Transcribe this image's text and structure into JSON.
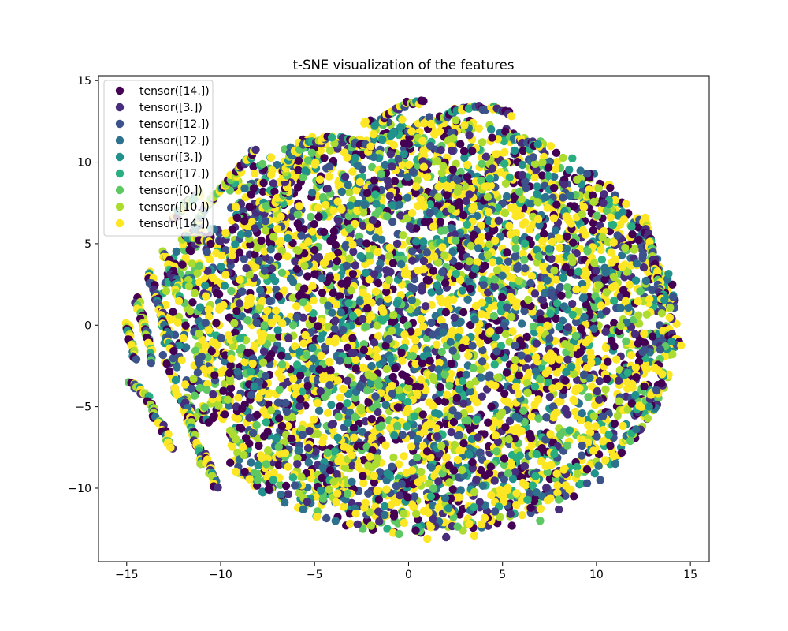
{
  "chart_data": {
    "type": "scatter",
    "title": "t-SNE visualization of the features",
    "xlabel": "",
    "ylabel": "",
    "xlim": [
      -16.5,
      16.0
    ],
    "ylim": [
      -14.5,
      15.3
    ],
    "x_ticks": [
      -15,
      -10,
      -5,
      0,
      5,
      10,
      15
    ],
    "y_ticks": [
      -10,
      -5,
      0,
      5,
      10,
      15
    ],
    "x_tick_labels": [
      "−15",
      "−10",
      "−5",
      "0",
      "5",
      "10",
      "15"
    ],
    "y_tick_labels": [
      "−10",
      "−5",
      "0",
      "5",
      "10",
      "15"
    ],
    "grid": false,
    "legend_position": "upper-left",
    "series": [
      {
        "name": "tensor([14.])",
        "color": "#440154"
      },
      {
        "name": "tensor([3.])",
        "color": "#472d7b"
      },
      {
        "name": "tensor([12.])",
        "color": "#3b528b"
      },
      {
        "name": "tensor([12.])",
        "color": "#2c728e"
      },
      {
        "name": "tensor([3.])",
        "color": "#21918c"
      },
      {
        "name": "tensor([17.])",
        "color": "#28ae80"
      },
      {
        "name": "tensor([0.])",
        "color": "#5ec962"
      },
      {
        "name": "tensor([10.])",
        "color": "#addc30"
      },
      {
        "name": "tensor([14.])",
        "color": "#fde725"
      }
    ],
    "cloud": {
      "description_shape": "dense elliptical cloud",
      "center": [
        0.5,
        0.0
      ],
      "radius_x": 13.8,
      "radius_y": 12.8,
      "top_lobe_max_y": 13.7,
      "bottom_min_y": -13.2
    },
    "filaments": [
      [
        [
          -15.0,
          0.2
        ],
        [
          -14.8,
          -1.0
        ],
        [
          -14.6,
          -2.2
        ]
      ],
      [
        [
          -14.5,
          1.8
        ],
        [
          -14.2,
          0.5
        ],
        [
          -13.9,
          -0.8
        ],
        [
          -13.6,
          -2.2
        ]
      ],
      [
        [
          -14.8,
          -3.5
        ],
        [
          -14.0,
          -4.2
        ],
        [
          -13.5,
          -5.5
        ],
        [
          -13.0,
          -6.5
        ],
        [
          -12.6,
          -7.6
        ]
      ],
      [
        [
          -13.8,
          3.2
        ],
        [
          -13.4,
          1.5
        ],
        [
          -13.0,
          0.0
        ],
        [
          -12.6,
          -1.5
        ]
      ],
      [
        [
          -13.0,
          4.5
        ],
        [
          -12.5,
          3.0
        ],
        [
          -12.2,
          1.5
        ]
      ],
      [
        [
          -12.0,
          -4.5
        ],
        [
          -11.6,
          -6.0
        ],
        [
          -11.2,
          -7.5
        ],
        [
          -11.0,
          -8.6
        ]
      ],
      [
        [
          -10.8,
          -8.0
        ],
        [
          -10.5,
          -9.0
        ],
        [
          -10.2,
          -10.0
        ]
      ],
      [
        [
          -11.5,
          5.5
        ],
        [
          -11.0,
          6.8
        ],
        [
          -10.5,
          7.8
        ],
        [
          -9.8,
          8.6
        ],
        [
          -9.0,
          9.5
        ],
        [
          -8.2,
          10.8
        ]
      ],
      [
        [
          -12.5,
          6.5
        ],
        [
          -11.8,
          7.4
        ],
        [
          -11.0,
          8.2
        ]
      ],
      [
        [
          -12.0,
          5.6
        ],
        [
          -11.2,
          5.2
        ],
        [
          -10.4,
          5.0
        ]
      ],
      [
        [
          -8.0,
          7.0
        ],
        [
          -7.0,
          7.6
        ],
        [
          -6.5,
          8.2
        ],
        [
          -6.6,
          9.4
        ],
        [
          -6.2,
          10.5
        ],
        [
          -5.3,
          11.2
        ],
        [
          -4.2,
          11.5
        ]
      ],
      [
        [
          -3.5,
          11.6
        ],
        [
          -2.8,
          11.2
        ],
        [
          -2.0,
          11.0
        ]
      ],
      [
        [
          -1.5,
          12.5
        ],
        [
          -0.8,
          13.2
        ],
        [
          0.0,
          13.6
        ],
        [
          0.8,
          13.7
        ]
      ],
      [
        [
          1.5,
          12.5
        ],
        [
          2.5,
          13.2
        ],
        [
          3.5,
          13.4
        ],
        [
          4.5,
          13.3
        ],
        [
          5.5,
          12.9
        ]
      ],
      [
        [
          5.5,
          11.5
        ],
        [
          6.5,
          11.2
        ],
        [
          7.0,
          11.0
        ]
      ],
      [
        [
          12.5,
          6.5
        ],
        [
          13.0,
          4.5
        ],
        [
          13.3,
          2.5
        ],
        [
          13.6,
          1.5
        ]
      ],
      [
        [
          13.8,
          -0.5
        ],
        [
          14.2,
          -0.8
        ],
        [
          14.4,
          -1.2
        ]
      ],
      [
        [
          12.0,
          -5.5
        ],
        [
          12.8,
          -4.5
        ],
        [
          13.5,
          -3.5
        ]
      ],
      [
        [
          11.5,
          -7.0
        ],
        [
          12.0,
          -6.5
        ]
      ]
    ],
    "scattered_outliers": [
      [
        2.0,
        -13.0
      ],
      [
        3.5,
        -12.9
      ],
      [
        5.5,
        -12.3
      ],
      [
        7.0,
        -12.0
      ],
      [
        8.0,
        -11.3
      ],
      [
        8.8,
        -10.5
      ],
      [
        9.5,
        -9.7
      ],
      [
        10.2,
        -9.5
      ],
      [
        11.0,
        -8.5
      ],
      [
        11.8,
        -7.1
      ],
      [
        8.0,
        -10.7
      ],
      [
        12.8,
        -5.0
      ],
      [
        13.2,
        -4.0
      ],
      [
        13.5,
        -3.0
      ],
      [
        13.4,
        -1.5
      ],
      [
        14.0,
        -1.0
      ],
      [
        -0.5,
        -12.8
      ],
      [
        1.0,
        -13.1
      ],
      [
        -2.0,
        -12.3
      ],
      [
        6.5,
        -11.2
      ]
    ]
  }
}
